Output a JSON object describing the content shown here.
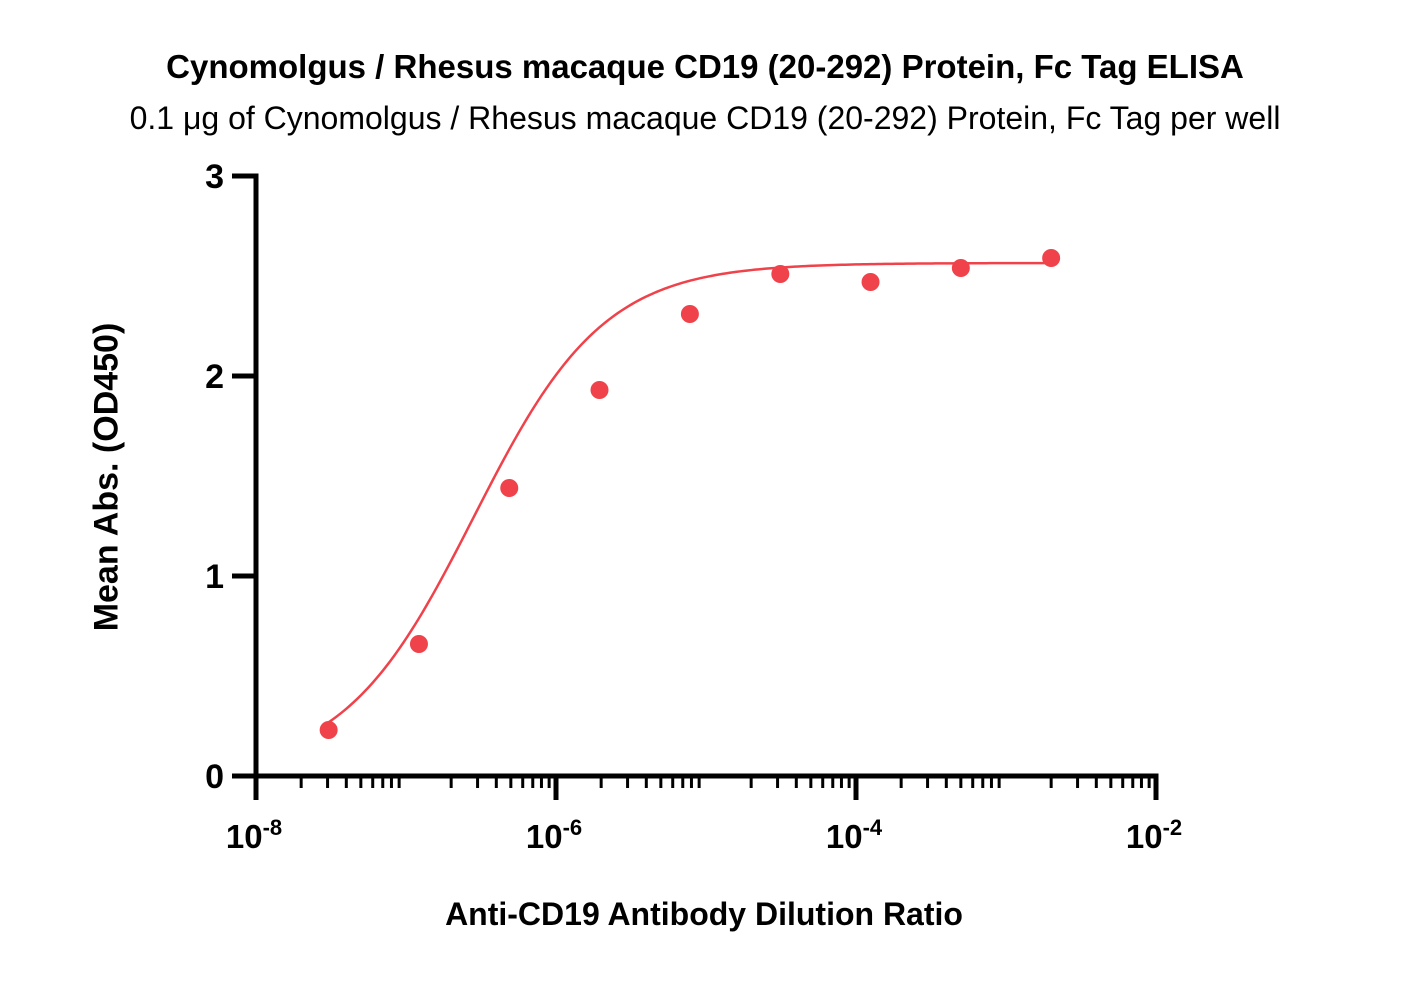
{
  "chart_data": {
    "type": "scatter",
    "title": "Cynomolgus / Rhesus macaque CD19 (20-292) Protein, Fc Tag ELISA",
    "subtitle": "0.1 μg of Cynomolgus / Rhesus macaque CD19 (20-292) Protein, Fc Tag per well",
    "xlabel": "Anti-CD19 Antibody Dilution Ratio",
    "ylabel": "Mean Abs. (OD450)",
    "x_scale": "log",
    "xlim": [
      1e-08,
      0.01
    ],
    "ylim": [
      0,
      3
    ],
    "x_ticks": [
      {
        "base": "10",
        "exp": "-8",
        "value": 1e-08
      },
      {
        "base": "10",
        "exp": "-6",
        "value": 1e-06
      },
      {
        "base": "10",
        "exp": "-4",
        "value": 0.0001
      },
      {
        "base": "10",
        "exp": "-2",
        "value": 0.01
      }
    ],
    "y_ticks": [
      "0",
      "1",
      "2",
      "3"
    ],
    "grid": false,
    "series": [
      {
        "color": "#f0424a",
        "points": [
          {
            "x": 3.05e-08,
            "y": 0.23
          },
          {
            "x": 1.22e-07,
            "y": 0.66
          },
          {
            "x": 4.88e-07,
            "y": 1.44
          },
          {
            "x": 1.95e-06,
            "y": 1.93
          },
          {
            "x": 7.81e-06,
            "y": 2.31
          },
          {
            "x": 3.13e-05,
            "y": 2.51
          },
          {
            "x": 0.000125,
            "y": 2.47
          },
          {
            "x": 0.0005,
            "y": 2.54
          },
          {
            "x": 0.002,
            "y": 2.59
          }
        ],
        "fit": {
          "bottom": 0.02,
          "top": 2.565,
          "log_ec50": -6.55,
          "hill": 1.0
        }
      }
    ]
  }
}
